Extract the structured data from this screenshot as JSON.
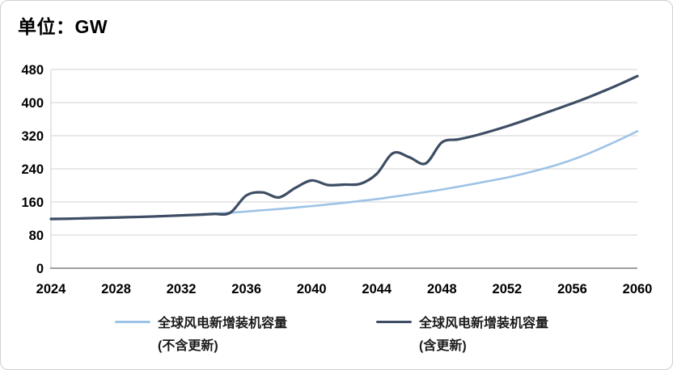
{
  "title": "单位：GW",
  "colors": {
    "gridline": "#D9D9D9",
    "axis_line": "#9E9E9E",
    "tick_label": "#000000",
    "legend_text": "#1A1A1A"
  },
  "chart_data": {
    "type": "line",
    "title": "单位：GW",
    "xlabel": "",
    "ylabel": "GW",
    "xlim": [
      2024,
      2060
    ],
    "ylim": [
      0,
      480
    ],
    "x_ticks": [
      2024,
      2028,
      2032,
      2036,
      2040,
      2044,
      2048,
      2052,
      2056,
      2060
    ],
    "y_ticks": [
      0,
      80,
      160,
      240,
      320,
      400,
      480
    ],
    "grid": "horizontal",
    "legend_position": "bottom",
    "x": [
      2024,
      2025,
      2026,
      2027,
      2028,
      2029,
      2030,
      2031,
      2032,
      2033,
      2034,
      2035,
      2036,
      2037,
      2038,
      2039,
      2040,
      2041,
      2042,
      2043,
      2044,
      2045,
      2046,
      2047,
      2048,
      2049,
      2050,
      2051,
      2052,
      2053,
      2054,
      2055,
      2056,
      2057,
      2058,
      2059,
      2060
    ],
    "series": [
      {
        "name": "全球风电新增装机容量 (不含更新)",
        "label_line1": "全球风电新增装机容量",
        "label_line2": "(不含更新)",
        "color": "#9DC3E6",
        "width": 2.6,
        "values": [
          118,
          119,
          120,
          121,
          122,
          123.5,
          125,
          126.5,
          128,
          130,
          132,
          134,
          137,
          140,
          143,
          146.5,
          150,
          154,
          158,
          162.5,
          167,
          172.5,
          178,
          184,
          190,
          197,
          204,
          211.5,
          219,
          228,
          238,
          249,
          262,
          277,
          294,
          312,
          331
        ]
      },
      {
        "name": "全球风电新增装机容量 (含更新)",
        "label_line1": "全球风电新增装机容量",
        "label_line2": "(含更新)",
        "color": "#3E4D64",
        "width": 3.2,
        "values": [
          119,
          119.5,
          120.5,
          121.5,
          122.5,
          123.5,
          124.5,
          126,
          127.5,
          129,
          131,
          134,
          176,
          183,
          171,
          194,
          212,
          201,
          202,
          204,
          228,
          278,
          268,
          253,
          304,
          311,
          320,
          331,
          343,
          356,
          370,
          384,
          398,
          413,
          429,
          446,
          464
        ]
      }
    ]
  }
}
